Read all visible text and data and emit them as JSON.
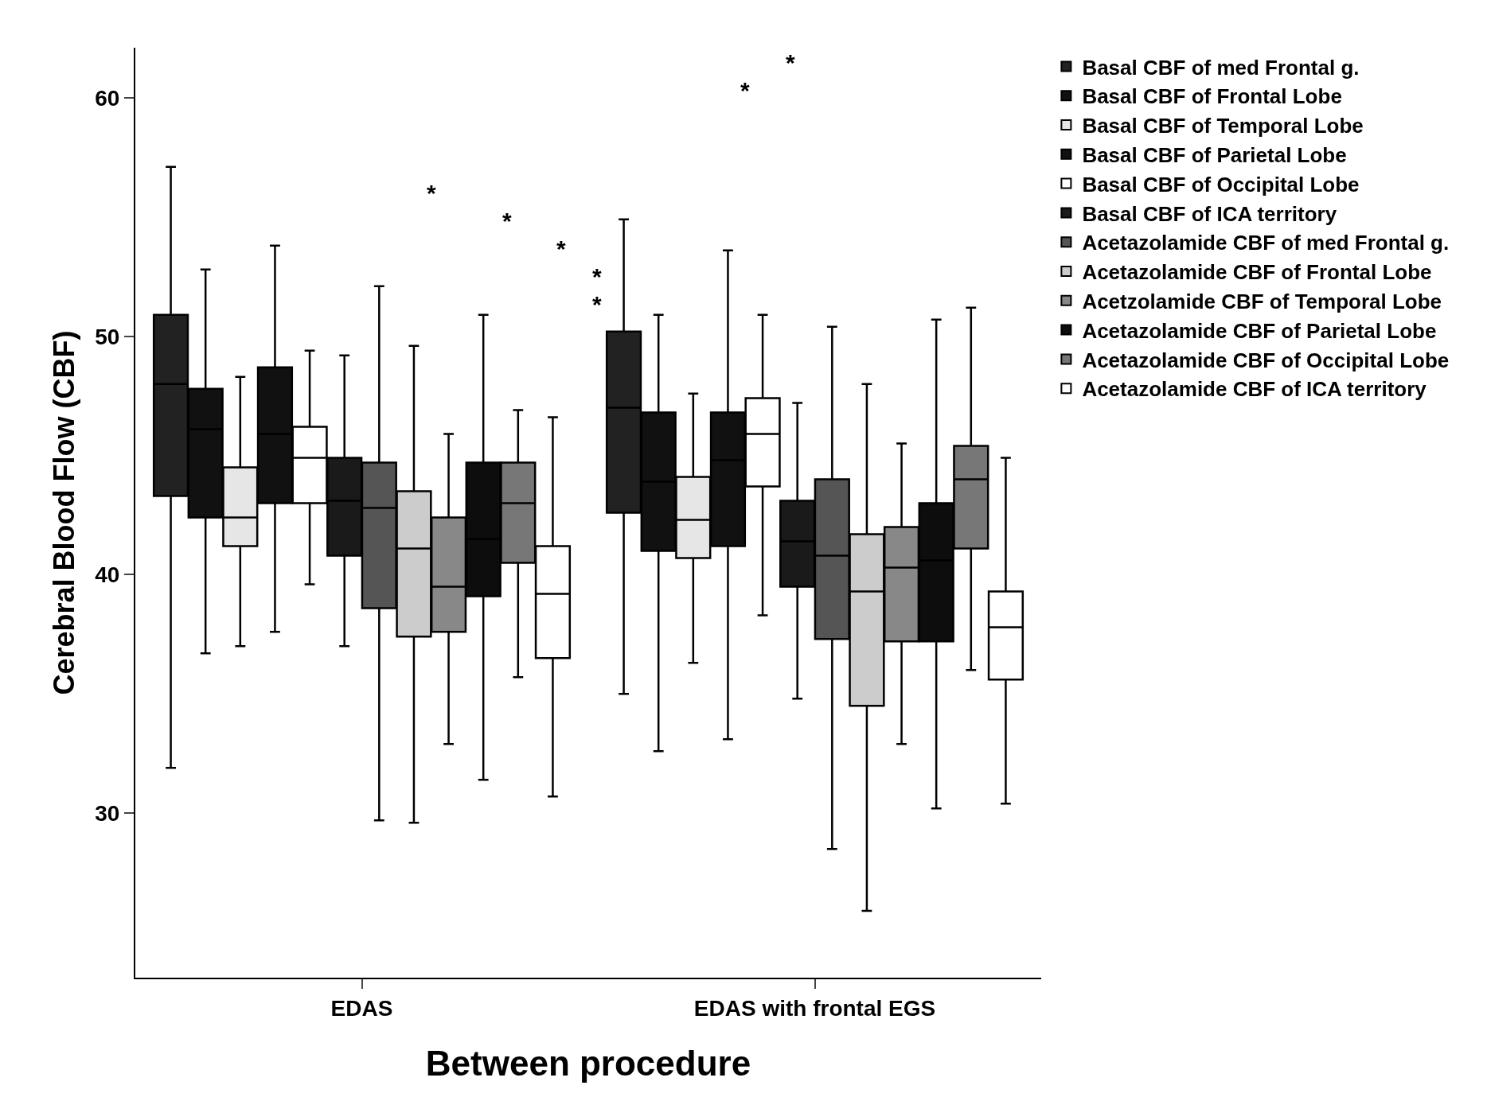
{
  "chart_data": {
    "type": "box",
    "xlabel": "Between procedure",
    "ylabel": "Cerebral Blood Flow (CBF)",
    "categories": [
      "EDAS",
      "EDAS with frontal EGS"
    ],
    "ylim": [
      23.1,
      62.1
    ],
    "yticks": [
      30,
      40,
      50,
      60
    ],
    "legend": "top right",
    "annotations": [
      "*",
      "*",
      "*",
      "*",
      "*",
      "*",
      "*"
    ],
    "series": [
      {
        "name": "Basal CBF of med Frontal g.",
        "color": "#222222",
        "boxes": [
          {
            "low": 31.9,
            "q1": 43.3,
            "median": 48.0,
            "q3": 50.9,
            "high": 57.1
          },
          {
            "low": 35.0,
            "q1": 42.6,
            "median": 47.0,
            "q3": 50.2,
            "high": 54.9
          }
        ]
      },
      {
        "name": "Basal CBF of Frontal Lobe",
        "color": "#111111",
        "boxes": [
          {
            "low": 36.7,
            "q1": 42.4,
            "median": 46.1,
            "q3": 47.8,
            "high": 52.8
          },
          {
            "low": 32.6,
            "q1": 41.0,
            "median": 43.9,
            "q3": 46.8,
            "high": 50.9
          }
        ]
      },
      {
        "name": "Basal CBF of Temporal Lobe",
        "color": "#e6e6e6",
        "boxes": [
          {
            "low": 37.0,
            "q1": 41.2,
            "median": 42.4,
            "q3": 44.5,
            "high": 48.3
          },
          {
            "low": 36.3,
            "q1": 40.7,
            "median": 42.3,
            "q3": 44.1,
            "high": 47.6
          }
        ]
      },
      {
        "name": "Basal CBF of Parietal Lobe",
        "color": "#111111",
        "boxes": [
          {
            "low": 37.6,
            "q1": 43.0,
            "median": 45.9,
            "q3": 48.7,
            "high": 53.8
          },
          {
            "low": 33.1,
            "q1": 41.2,
            "median": 44.8,
            "q3": 46.8,
            "high": 53.6
          }
        ]
      },
      {
        "name": "Basal CBF of Occipital Lobe",
        "color": "#ffffff",
        "boxes": [
          {
            "low": 39.6,
            "q1": 43.0,
            "median": 44.9,
            "q3": 46.2,
            "high": 49.4
          },
          {
            "low": 38.3,
            "q1": 43.7,
            "median": 45.9,
            "q3": 47.4,
            "high": 50.9
          }
        ]
      },
      {
        "name": "Basal CBF of ICA territory",
        "color": "#1a1a1a",
        "boxes": [
          {
            "low": 37.0,
            "q1": 40.8,
            "median": 43.1,
            "q3": 44.9,
            "high": 49.2
          },
          {
            "low": 34.8,
            "q1": 39.5,
            "median": 41.4,
            "q3": 43.1,
            "high": 47.2
          }
        ]
      },
      {
        "name": "Acetazolamide CBF of med Frontal g.",
        "color": "#555555",
        "boxes": [
          {
            "low": 29.7,
            "q1": 38.6,
            "median": 42.8,
            "q3": 44.7,
            "high": 52.1
          },
          {
            "low": 28.5,
            "q1": 37.3,
            "median": 40.8,
            "q3": 44.0,
            "high": 50.4
          }
        ]
      },
      {
        "name": "Acetazolamide CBF of Frontal Lobe",
        "color": "#cccccc",
        "boxes": [
          {
            "low": 29.6,
            "q1": 37.4,
            "median": 41.1,
            "q3": 43.5,
            "high": 49.6
          },
          {
            "low": 25.9,
            "q1": 34.5,
            "median": 39.3,
            "q3": 41.7,
            "high": 48.0
          }
        ]
      },
      {
        "name": "Acetzolamide CBF of Temporal Lobe",
        "color": "#888888",
        "boxes": [
          {
            "low": 32.9,
            "q1": 37.6,
            "median": 39.5,
            "q3": 42.4,
            "high": 45.9
          },
          {
            "low": 32.9,
            "q1": 37.2,
            "median": 40.3,
            "q3": 42.0,
            "high": 45.5
          }
        ]
      },
      {
        "name": "Acetazolamide CBF of Parietal Lobe",
        "color": "#0d0d0d",
        "boxes": [
          {
            "low": 31.4,
            "q1": 39.1,
            "median": 41.5,
            "q3": 44.7,
            "high": 50.9
          },
          {
            "low": 30.2,
            "q1": 37.2,
            "median": 40.6,
            "q3": 43.0,
            "high": 50.7
          }
        ]
      },
      {
        "name": "Acetazolamide CBF of Occipital Lobe",
        "color": "#777777",
        "boxes": [
          {
            "low": 35.7,
            "q1": 40.5,
            "median": 43.0,
            "q3": 44.7,
            "high": 46.9
          },
          {
            "low": 36.0,
            "q1": 41.1,
            "median": 44.0,
            "q3": 45.4,
            "high": 51.2
          }
        ]
      },
      {
        "name": "Acetazolamide CBF of ICA territory",
        "color": "#ffffff",
        "boxes": [
          {
            "low": 30.7,
            "q1": 36.5,
            "median": 39.2,
            "q3": 41.2,
            "high": 46.6
          },
          {
            "low": 30.4,
            "q1": 35.6,
            "median": 37.8,
            "q3": 39.3,
            "high": 44.9
          }
        ]
      }
    ]
  }
}
